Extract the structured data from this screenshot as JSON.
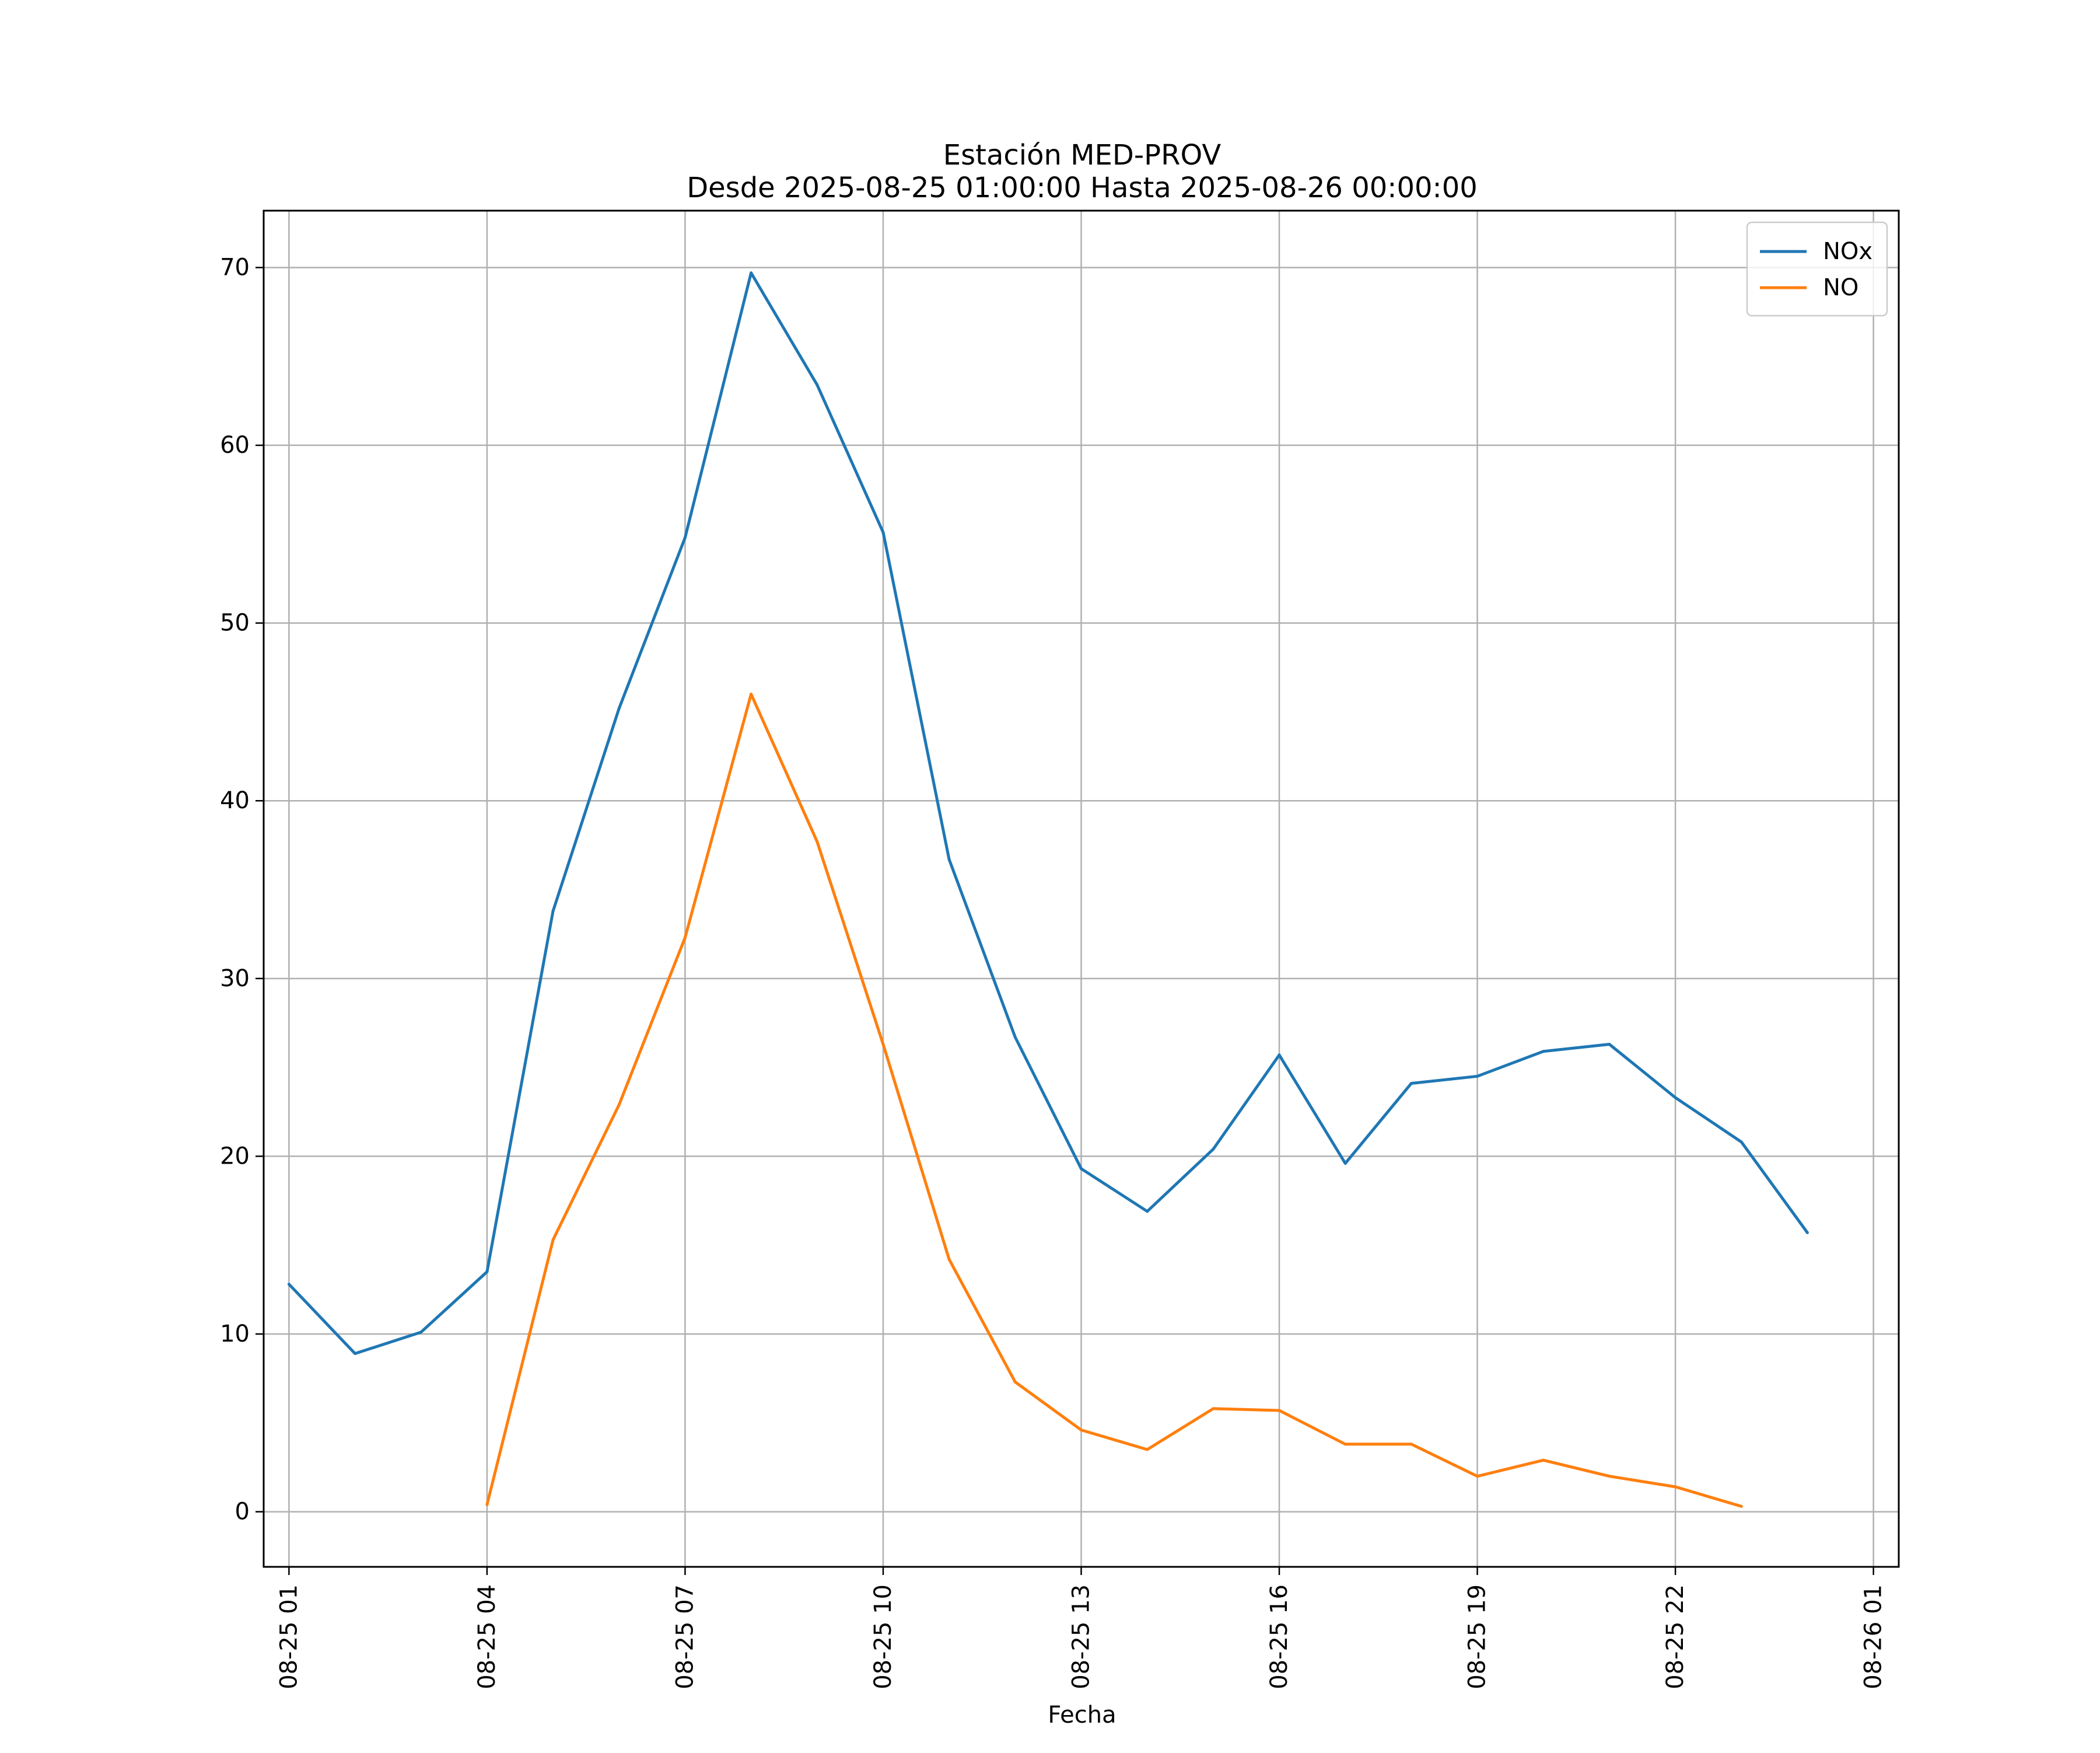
{
  "chart_data": {
    "type": "line",
    "title": "Estación MED-PROV",
    "subtitle": "Desde 2025-08-25 01:00:00 Hasta 2025-08-26 00:00:00",
    "xlabel": "Fecha",
    "ylabel": "",
    "xlim": [
      "2025-08-25 00:37",
      "2025-08-26 01:23"
    ],
    "ylim": [
      -3.1,
      73.2
    ],
    "grid": true,
    "legend_position": "top-right",
    "x_ticks": [
      "08-25 01",
      "08-25 04",
      "08-25 07",
      "08-25 10",
      "08-25 13",
      "08-25 16",
      "08-25 19",
      "08-25 22",
      "08-26 01"
    ],
    "y_ticks": [
      0,
      10,
      20,
      30,
      40,
      50,
      60,
      70
    ],
    "x": [
      "2025-08-25 01:00",
      "2025-08-25 02:00",
      "2025-08-25 03:00",
      "2025-08-25 04:00",
      "2025-08-25 05:00",
      "2025-08-25 06:00",
      "2025-08-25 07:00",
      "2025-08-25 08:00",
      "2025-08-25 09:00",
      "2025-08-25 10:00",
      "2025-08-25 11:00",
      "2025-08-25 12:00",
      "2025-08-25 13:00",
      "2025-08-25 14:00",
      "2025-08-25 15:00",
      "2025-08-25 16:00",
      "2025-08-25 17:00",
      "2025-08-25 18:00",
      "2025-08-25 19:00",
      "2025-08-25 20:00",
      "2025-08-25 21:00",
      "2025-08-25 22:00",
      "2025-08-25 23:00",
      "2025-08-26 00:00"
    ],
    "series": [
      {
        "name": "NOx",
        "color": "#1f77b4",
        "values": [
          12.8,
          8.9,
          10.1,
          13.5,
          33.8,
          45.2,
          54.8,
          69.7,
          63.4,
          55.1,
          36.7,
          26.7,
          19.3,
          16.9,
          20.4,
          25.7,
          19.6,
          24.1,
          24.5,
          25.9,
          26.3,
          23.3,
          20.8,
          15.7
        ]
      },
      {
        "name": "NO",
        "color": "#ff7f0e",
        "values": [
          null,
          null,
          null,
          0.4,
          15.3,
          22.9,
          32.3,
          46.0,
          37.7,
          26.3,
          14.2,
          7.3,
          4.6,
          3.5,
          5.8,
          5.7,
          3.8,
          3.8,
          2.0,
          2.9,
          2.0,
          1.4,
          0.3,
          null
        ]
      }
    ]
  }
}
